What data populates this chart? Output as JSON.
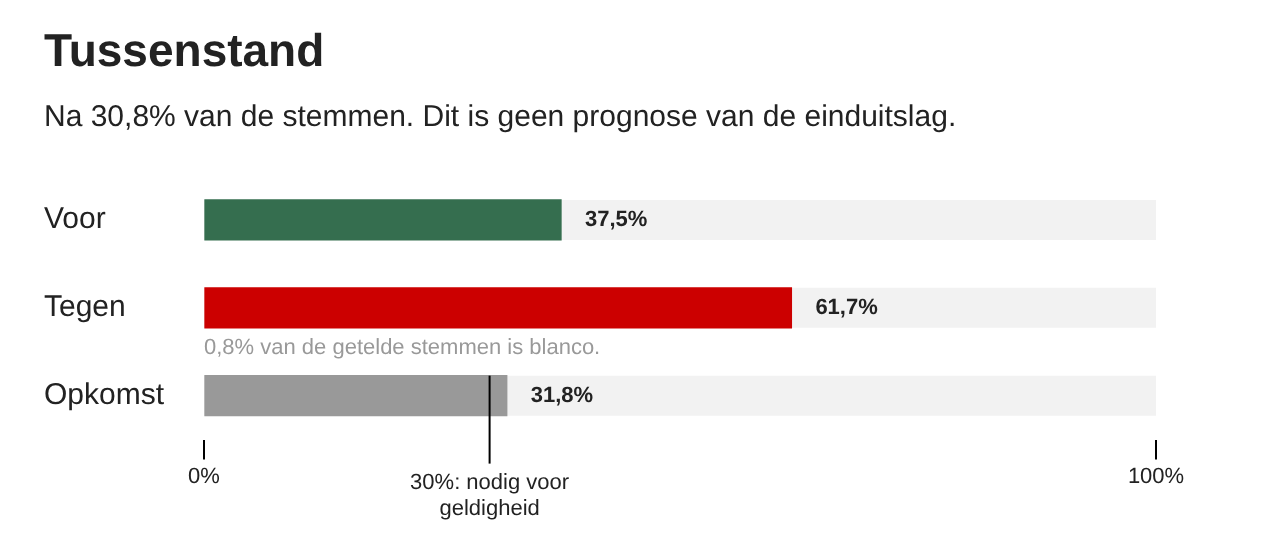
{
  "chart_data": {
    "type": "bar",
    "orientation": "horizontal",
    "title": "Tussenstand",
    "subtitle": "Na 30,8% van de stemmen. Dit is geen prognose van de einduitslag.",
    "categories": [
      "Voor",
      "Tegen",
      "Opkomst"
    ],
    "values": [
      37.5,
      61.7,
      31.8
    ],
    "colors": [
      "#356e4f",
      "#cc0000",
      "#999999"
    ],
    "value_labels": [
      "37,5%",
      "61,7%",
      "31,8%"
    ],
    "xlim": [
      0,
      100
    ],
    "xticks": [
      {
        "value": 0,
        "label": "0%"
      },
      {
        "value": 100,
        "label": "100%"
      }
    ],
    "ref_lines": [
      {
        "axis": "x",
        "value": 30,
        "label": "30%: nodig voor geldigheid",
        "color": "#000000"
      }
    ],
    "annotations": [
      "0,8% van de getelde stemmen is blanco."
    ],
    "grid": false,
    "legend": false
  }
}
